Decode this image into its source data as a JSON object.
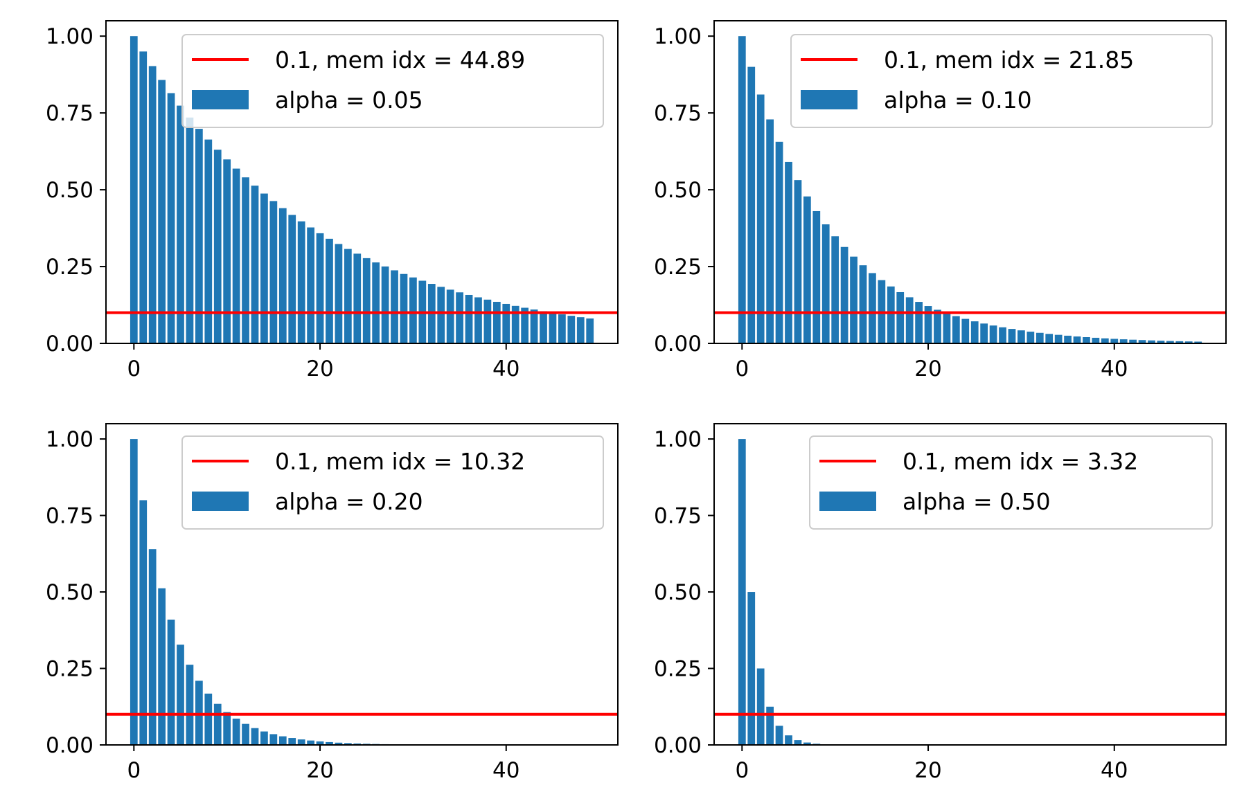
{
  "figure": {
    "layout": "2x2 grid of bar charts with horizontal threshold line",
    "bar_color": "#1f77b4",
    "line_color": "#ff0000",
    "legend_position": "top-right"
  },
  "chart_data": [
    {
      "type": "bar",
      "panel": "top-left",
      "alpha": 0.05,
      "x": {
        "start": 0,
        "end": 49
      },
      "threshold": 0.1,
      "legend": {
        "line_label": "0.1, mem idx = 44.89",
        "bar_label": "alpha = 0.05"
      },
      "xlim": [
        -3,
        52
      ],
      "ylim": [
        0,
        1.05
      ],
      "xticks": [
        "0",
        "20",
        "40"
      ],
      "yticks": [
        "0.00",
        "0.25",
        "0.50",
        "0.75",
        "1.00"
      ],
      "grid": false
    },
    {
      "type": "bar",
      "panel": "top-right",
      "alpha": 0.1,
      "x": {
        "start": 0,
        "end": 49
      },
      "threshold": 0.1,
      "legend": {
        "line_label": "0.1, mem idx = 21.85",
        "bar_label": "alpha = 0.10"
      },
      "xlim": [
        -3,
        52
      ],
      "ylim": [
        0,
        1.05
      ],
      "xticks": [
        "0",
        "20",
        "40"
      ],
      "yticks": [
        "0.00",
        "0.25",
        "0.50",
        "0.75",
        "1.00"
      ],
      "grid": false
    },
    {
      "type": "bar",
      "panel": "bottom-left",
      "alpha": 0.2,
      "x": {
        "start": 0,
        "end": 49
      },
      "threshold": 0.1,
      "legend": {
        "line_label": "0.1, mem idx = 10.32",
        "bar_label": "alpha = 0.20"
      },
      "xlim": [
        -3,
        52
      ],
      "ylim": [
        0,
        1.05
      ],
      "xticks": [
        "0",
        "20",
        "40"
      ],
      "yticks": [
        "0.00",
        "0.25",
        "0.50",
        "0.75",
        "1.00"
      ],
      "grid": false
    },
    {
      "type": "bar",
      "panel": "bottom-right",
      "alpha": 0.5,
      "x": {
        "start": 0,
        "end": 49
      },
      "threshold": 0.1,
      "legend": {
        "line_label": "0.1, mem idx = 3.32",
        "bar_label": "alpha = 0.50"
      },
      "xlim": [
        -3,
        52
      ],
      "ylim": [
        0,
        1.05
      ],
      "xticks": [
        "0",
        "20",
        "40"
      ],
      "yticks": [
        "0.00",
        "0.25",
        "0.50",
        "0.75",
        "1.00"
      ],
      "grid": false
    }
  ]
}
